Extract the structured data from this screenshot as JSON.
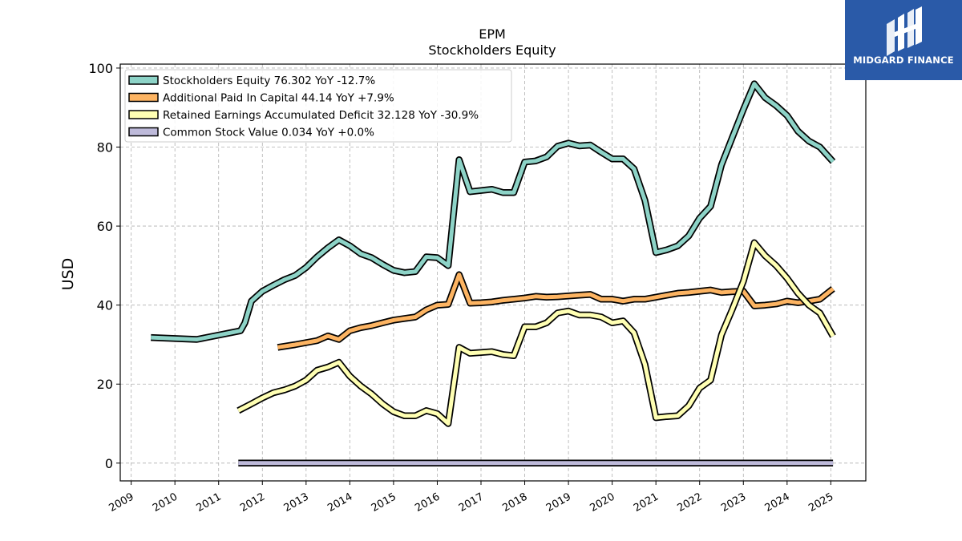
{
  "chart_data": {
    "type": "line",
    "title": "EPM",
    "subtitle": "Stockholders  Equity",
    "ylabel": "USD",
    "xlabel": "",
    "ylim": [
      -4.5,
      101
    ],
    "xlim": [
      2008.75,
      2025.8
    ],
    "yticks": [
      0,
      20,
      40,
      60,
      80,
      100
    ],
    "xticks": [
      2009,
      2010,
      2011,
      2012,
      2013,
      2014,
      2015,
      2016,
      2017,
      2018,
      2019,
      2020,
      2021,
      2022,
      2023,
      2024,
      2025
    ],
    "grid": true,
    "legend_position": "top-left",
    "series": [
      {
        "name": "Stockholders Equity",
        "legend_label": "Stockholders Equity  76.302 YoY -12.7%",
        "color": "#8dd3c7",
        "points": [
          [
            2009.45,
            31.8
          ],
          [
            2010.5,
            31.3
          ],
          [
            2011.5,
            33.5
          ],
          [
            2011.6,
            35.5
          ],
          [
            2011.75,
            41.0
          ],
          [
            2012.0,
            43.5
          ],
          [
            2012.25,
            45.0
          ],
          [
            2012.5,
            46.4
          ],
          [
            2012.75,
            47.5
          ],
          [
            2013.0,
            49.5
          ],
          [
            2013.25,
            52.2
          ],
          [
            2013.5,
            54.5
          ],
          [
            2013.75,
            56.5
          ],
          [
            2014.0,
            55.0
          ],
          [
            2014.25,
            53.0
          ],
          [
            2014.5,
            52.0
          ],
          [
            2014.75,
            50.3
          ],
          [
            2015.0,
            48.8
          ],
          [
            2015.25,
            48.2
          ],
          [
            2015.5,
            48.5
          ],
          [
            2015.75,
            52.2
          ],
          [
            2016.0,
            52.0
          ],
          [
            2016.25,
            50.0
          ],
          [
            2016.5,
            76.8
          ],
          [
            2016.75,
            68.7
          ],
          [
            2017.0,
            69.0
          ],
          [
            2017.25,
            69.3
          ],
          [
            2017.5,
            68.5
          ],
          [
            2017.75,
            68.5
          ],
          [
            2018.0,
            76.2
          ],
          [
            2018.25,
            76.5
          ],
          [
            2018.5,
            77.5
          ],
          [
            2018.75,
            80.2
          ],
          [
            2019.0,
            81.0
          ],
          [
            2019.25,
            80.3
          ],
          [
            2019.5,
            80.5
          ],
          [
            2019.75,
            78.7
          ],
          [
            2020.0,
            77.0
          ],
          [
            2020.25,
            77.0
          ],
          [
            2020.5,
            74.5
          ],
          [
            2020.75,
            66.5
          ],
          [
            2021.0,
            53.3
          ],
          [
            2021.25,
            54.0
          ],
          [
            2021.5,
            55.0
          ],
          [
            2021.75,
            57.5
          ],
          [
            2022.0,
            62.0
          ],
          [
            2022.25,
            65.0
          ],
          [
            2022.5,
            75.5
          ],
          [
            2022.75,
            82.5
          ],
          [
            2023.0,
            89.5
          ],
          [
            2023.25,
            96.0
          ],
          [
            2023.5,
            92.5
          ],
          [
            2023.75,
            90.5
          ],
          [
            2024.0,
            88.0
          ],
          [
            2024.25,
            84.0
          ],
          [
            2024.5,
            81.5
          ],
          [
            2024.75,
            80.0
          ],
          [
            2025.05,
            76.302
          ]
        ]
      },
      {
        "name": "Additional Paid In Capital",
        "legend_label": "Additional Paid In Capital  44.14 YoY +7.9%",
        "color": "#fdb462",
        "points": [
          [
            2012.35,
            29.3
          ],
          [
            2012.75,
            30.0
          ],
          [
            2013.0,
            30.5
          ],
          [
            2013.25,
            31.0
          ],
          [
            2013.5,
            32.2
          ],
          [
            2013.75,
            31.3
          ],
          [
            2014.0,
            33.5
          ],
          [
            2014.25,
            34.3
          ],
          [
            2014.5,
            34.8
          ],
          [
            2014.75,
            35.5
          ],
          [
            2015.0,
            36.2
          ],
          [
            2015.25,
            36.6
          ],
          [
            2015.5,
            37.0
          ],
          [
            2015.75,
            38.8
          ],
          [
            2016.0,
            40.0
          ],
          [
            2016.25,
            40.2
          ],
          [
            2016.5,
            47.7
          ],
          [
            2016.75,
            40.5
          ],
          [
            2017.0,
            40.6
          ],
          [
            2017.25,
            40.8
          ],
          [
            2017.5,
            41.2
          ],
          [
            2017.75,
            41.5
          ],
          [
            2018.0,
            41.8
          ],
          [
            2018.25,
            42.2
          ],
          [
            2018.5,
            42.0
          ],
          [
            2018.75,
            42.1
          ],
          [
            2019.0,
            42.3
          ],
          [
            2019.25,
            42.5
          ],
          [
            2019.5,
            42.7
          ],
          [
            2019.75,
            41.5
          ],
          [
            2020.0,
            41.5
          ],
          [
            2020.25,
            41.0
          ],
          [
            2020.5,
            41.5
          ],
          [
            2020.75,
            41.5
          ],
          [
            2021.0,
            42.0
          ],
          [
            2021.25,
            42.5
          ],
          [
            2021.5,
            43.0
          ],
          [
            2021.75,
            43.2
          ],
          [
            2022.0,
            43.5
          ],
          [
            2022.25,
            43.8
          ],
          [
            2022.5,
            43.2
          ],
          [
            2022.75,
            43.4
          ],
          [
            2023.0,
            43.5
          ],
          [
            2023.25,
            39.8
          ],
          [
            2023.5,
            40.0
          ],
          [
            2023.75,
            40.3
          ],
          [
            2024.0,
            41.0
          ],
          [
            2024.25,
            40.6
          ],
          [
            2024.5,
            41.0
          ],
          [
            2024.75,
            41.5
          ],
          [
            2025.05,
            44.14
          ]
        ]
      },
      {
        "name": "Retained Earnings Accumulated Deficit",
        "legend_label": "Retained Earnings Accumulated Deficit  32.128 YoY -30.9%",
        "color": "#ffffb3",
        "points": [
          [
            2011.45,
            13.3
          ],
          [
            2011.75,
            15.0
          ],
          [
            2012.0,
            16.5
          ],
          [
            2012.25,
            17.8
          ],
          [
            2012.5,
            18.5
          ],
          [
            2012.75,
            19.5
          ],
          [
            2013.0,
            21.0
          ],
          [
            2013.25,
            23.5
          ],
          [
            2013.5,
            24.3
          ],
          [
            2013.75,
            25.5
          ],
          [
            2014.0,
            22.0
          ],
          [
            2014.25,
            19.5
          ],
          [
            2014.5,
            17.5
          ],
          [
            2014.75,
            15.0
          ],
          [
            2015.0,
            13.0
          ],
          [
            2015.25,
            12.0
          ],
          [
            2015.5,
            12.0
          ],
          [
            2015.75,
            13.3
          ],
          [
            2016.0,
            12.5
          ],
          [
            2016.25,
            10.0
          ],
          [
            2016.5,
            29.3
          ],
          [
            2016.75,
            27.8
          ],
          [
            2017.0,
            28.0
          ],
          [
            2017.25,
            28.2
          ],
          [
            2017.5,
            27.5
          ],
          [
            2017.75,
            27.2
          ],
          [
            2018.0,
            34.5
          ],
          [
            2018.25,
            34.5
          ],
          [
            2018.5,
            35.5
          ],
          [
            2018.75,
            38.0
          ],
          [
            2019.0,
            38.5
          ],
          [
            2019.25,
            37.5
          ],
          [
            2019.5,
            37.5
          ],
          [
            2019.75,
            37.0
          ],
          [
            2020.0,
            35.5
          ],
          [
            2020.25,
            36.0
          ],
          [
            2020.5,
            33.0
          ],
          [
            2020.75,
            25.0
          ],
          [
            2021.0,
            11.5
          ],
          [
            2021.25,
            11.8
          ],
          [
            2021.5,
            12.0
          ],
          [
            2021.75,
            14.5
          ],
          [
            2022.0,
            19.0
          ],
          [
            2022.25,
            21.0
          ],
          [
            2022.5,
            32.5
          ],
          [
            2022.75,
            39.0
          ],
          [
            2023.0,
            46.0
          ],
          [
            2023.25,
            55.8
          ],
          [
            2023.5,
            52.5
          ],
          [
            2023.75,
            50.0
          ],
          [
            2024.0,
            46.8
          ],
          [
            2024.25,
            43.0
          ],
          [
            2024.5,
            40.0
          ],
          [
            2024.75,
            38.0
          ],
          [
            2025.05,
            32.128
          ]
        ]
      },
      {
        "name": "Common Stock Value",
        "legend_label": "Common Stock Value  0.034 YoY +0.0%",
        "color": "#bebada",
        "points": [
          [
            2011.45,
            0.034
          ],
          [
            2025.05,
            0.034
          ]
        ]
      }
    ]
  },
  "logo": {
    "text": "MIDGARD FINANCE"
  }
}
